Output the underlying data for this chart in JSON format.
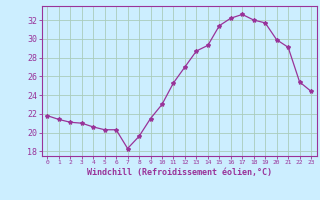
{
  "x": [
    0,
    1,
    2,
    3,
    4,
    5,
    6,
    7,
    8,
    9,
    10,
    11,
    12,
    13,
    14,
    15,
    16,
    17,
    18,
    19,
    20,
    21,
    22,
    23
  ],
  "y": [
    21.8,
    21.4,
    21.1,
    21.0,
    20.6,
    20.3,
    20.3,
    18.3,
    19.6,
    21.5,
    23.0,
    25.3,
    27.0,
    28.7,
    29.3,
    31.4,
    32.2,
    32.6,
    32.0,
    31.7,
    29.9,
    29.1,
    25.4,
    24.4
  ],
  "line_color": "#993399",
  "marker": "*",
  "marker_size": 3,
  "bg_color": "#cceeff",
  "grid_color": "#aaccbb",
  "xlabel": "Windchill (Refroidissement éolien,°C)",
  "ylabel_ticks": [
    18,
    20,
    22,
    24,
    26,
    28,
    30,
    32
  ],
  "xtick_labels": [
    "0",
    "1",
    "2",
    "3",
    "4",
    "5",
    "6",
    "7",
    "8",
    "9",
    "10",
    "11",
    "12",
    "13",
    "14",
    "15",
    "16",
    "17",
    "18",
    "19",
    "20",
    "21",
    "22",
    "23"
  ],
  "ylim": [
    17.5,
    33.5
  ],
  "xlim": [
    -0.5,
    23.5
  ],
  "font_color": "#993399"
}
